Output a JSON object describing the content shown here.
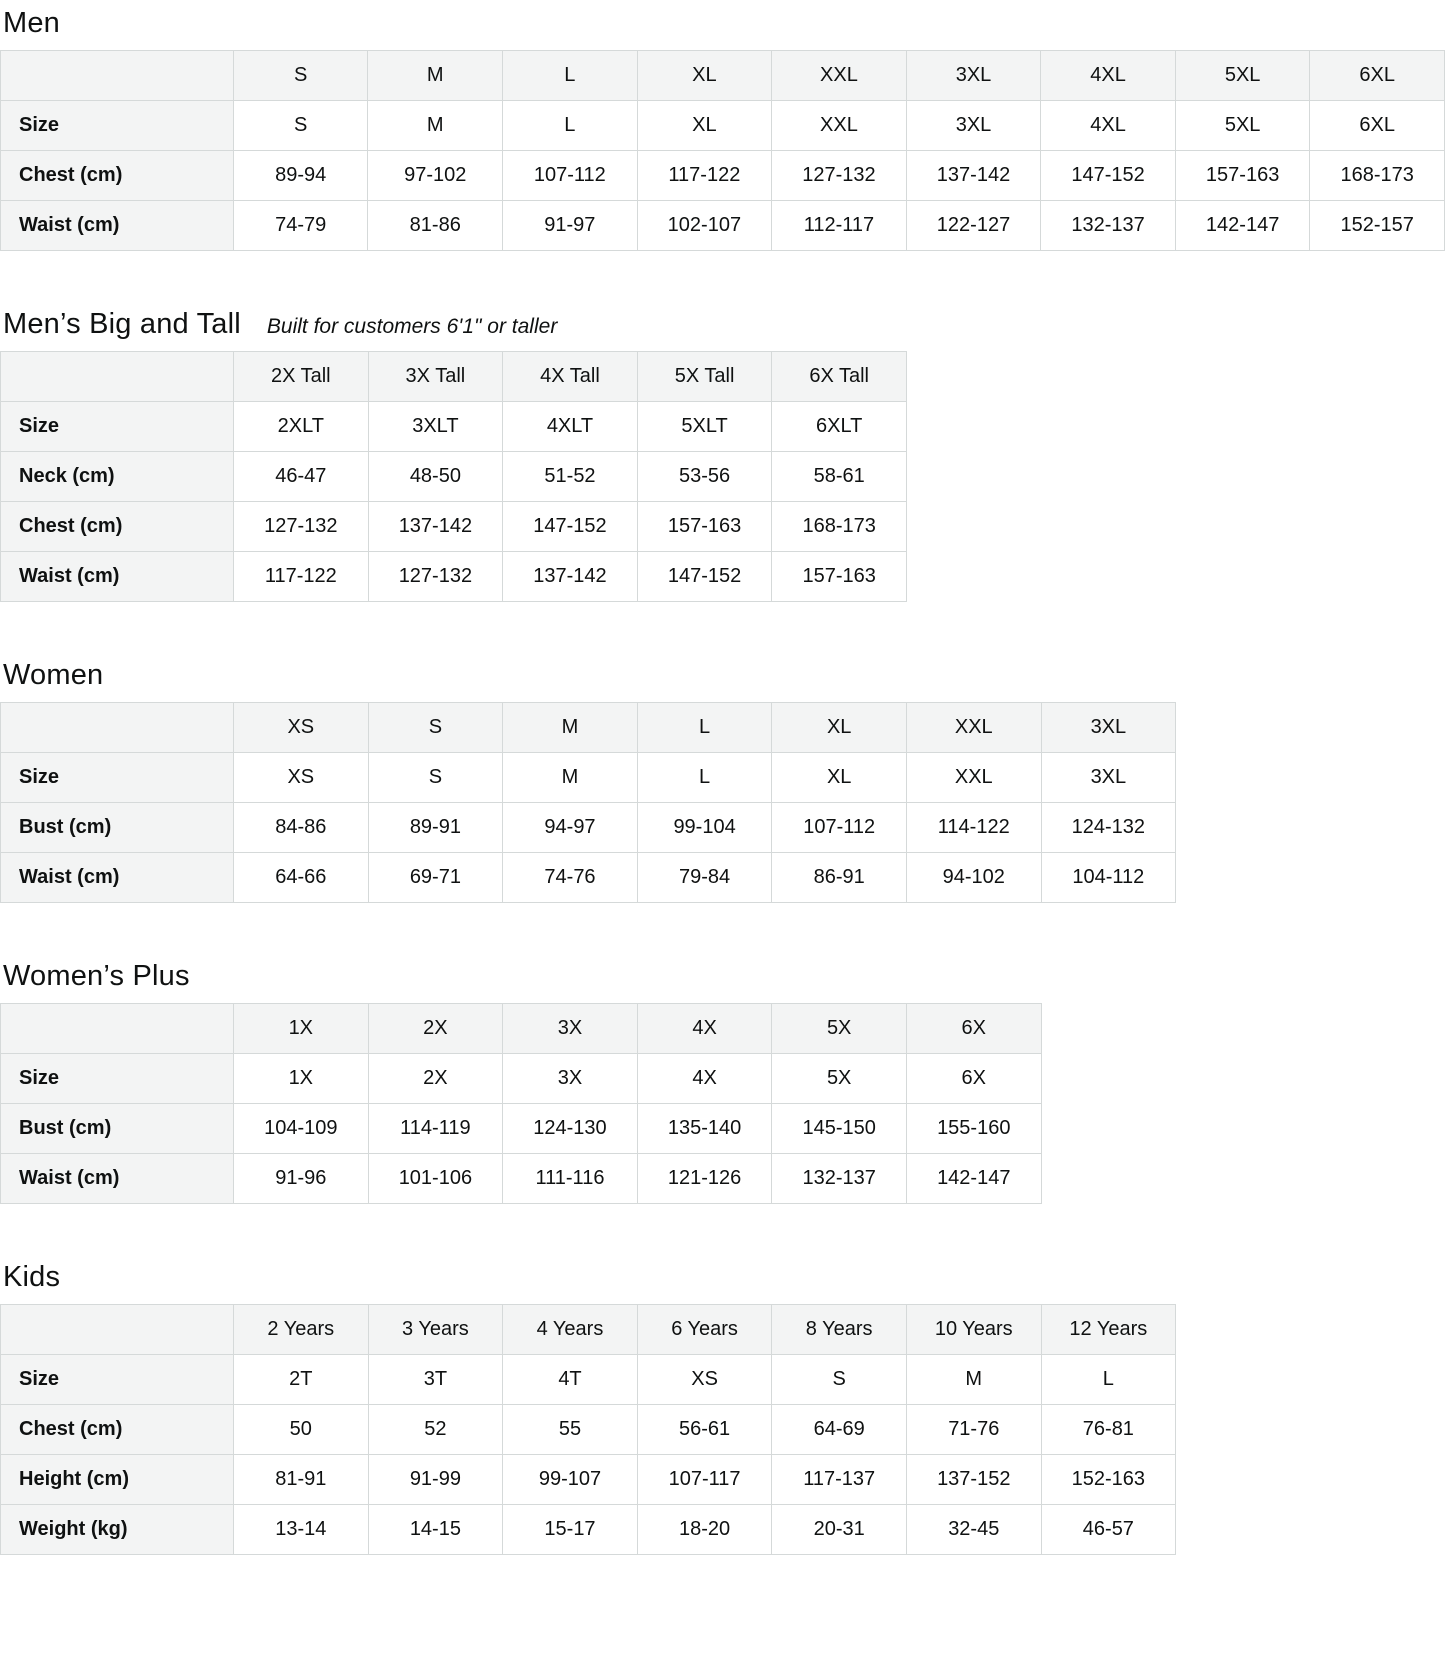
{
  "theme": {
    "header_bg": "#f3f4f4",
    "border_color": "#d5d9d9",
    "text_color": "#0f1111"
  },
  "sections": [
    {
      "id": "men",
      "title": "Men",
      "subtitle": "",
      "columns": [
        "S",
        "M",
        "L",
        "XL",
        "XXL",
        "3XL",
        "4XL",
        "5XL",
        "6XL"
      ],
      "rows": [
        {
          "label": "Size",
          "values": [
            "S",
            "M",
            "L",
            "XL",
            "XXL",
            "3XL",
            "4XL",
            "5XL",
            "6XL"
          ]
        },
        {
          "label": "Chest (cm)",
          "values": [
            "89-94",
            "97-102",
            "107-112",
            "117-122",
            "127-132",
            "137-142",
            "147-152",
            "157-163",
            "168-173"
          ]
        },
        {
          "label": "Waist (cm)",
          "values": [
            "74-79",
            "81-86",
            "91-97",
            "102-107",
            "112-117",
            "122-127",
            "132-137",
            "142-147",
            "152-157"
          ]
        }
      ]
    },
    {
      "id": "mens-big-and-tall",
      "title": "Men’s Big and Tall",
      "subtitle": "Built for customers 6'1\" or taller",
      "columns": [
        "2X Tall",
        "3X Tall",
        "4X Tall",
        "5X Tall",
        "6X Tall"
      ],
      "rows": [
        {
          "label": "Size",
          "values": [
            "2XLT",
            "3XLT",
            "4XLT",
            "5XLT",
            "6XLT"
          ]
        },
        {
          "label": "Neck (cm)",
          "values": [
            "46-47",
            "48-50",
            "51-52",
            "53-56",
            "58-61"
          ]
        },
        {
          "label": "Chest (cm)",
          "values": [
            "127-132",
            "137-142",
            "147-152",
            "157-163",
            "168-173"
          ]
        },
        {
          "label": "Waist (cm)",
          "values": [
            "117-122",
            "127-132",
            "137-142",
            "147-152",
            "157-163"
          ]
        }
      ]
    },
    {
      "id": "women",
      "title": "Women",
      "subtitle": "",
      "columns": [
        "XS",
        "S",
        "M",
        "L",
        "XL",
        "XXL",
        "3XL"
      ],
      "rows": [
        {
          "label": "Size",
          "values": [
            "XS",
            "S",
            "M",
            "L",
            "XL",
            "XXL",
            "3XL"
          ]
        },
        {
          "label": "Bust (cm)",
          "values": [
            "84-86",
            "89-91",
            "94-97",
            "99-104",
            "107-112",
            "114-122",
            "124-132"
          ]
        },
        {
          "label": "Waist (cm)",
          "values": [
            "64-66",
            "69-71",
            "74-76",
            "79-84",
            "86-91",
            "94-102",
            "104-112"
          ]
        }
      ]
    },
    {
      "id": "womens-plus",
      "title": "Women’s Plus",
      "subtitle": "",
      "columns": [
        "1X",
        "2X",
        "3X",
        "4X",
        "5X",
        "6X"
      ],
      "rows": [
        {
          "label": "Size",
          "values": [
            "1X",
            "2X",
            "3X",
            "4X",
            "5X",
            "6X"
          ]
        },
        {
          "label": "Bust (cm)",
          "values": [
            "104-109",
            "114-119",
            "124-130",
            "135-140",
            "145-150",
            "155-160"
          ]
        },
        {
          "label": "Waist (cm)",
          "values": [
            "91-96",
            "101-106",
            "111-116",
            "121-126",
            "132-137",
            "142-147"
          ]
        }
      ]
    },
    {
      "id": "kids",
      "title": "Kids",
      "subtitle": "",
      "columns": [
        "2 Years",
        "3 Years",
        "4 Years",
        "6 Years",
        "8 Years",
        "10 Years",
        "12 Years"
      ],
      "rows": [
        {
          "label": "Size",
          "values": [
            "2T",
            "3T",
            "4T",
            "XS",
            "S",
            "M",
            "L"
          ]
        },
        {
          "label": "Chest (cm)",
          "values": [
            "50",
            "52",
            "55",
            "56-61",
            "64-69",
            "71-76",
            "76-81"
          ]
        },
        {
          "label": "Height (cm)",
          "values": [
            "81-91",
            "91-99",
            "99-107",
            "107-117",
            "117-137",
            "137-152",
            "152-163"
          ]
        },
        {
          "label": "Weight (kg)",
          "values": [
            "13-14",
            "14-15",
            "15-17",
            "18-20",
            "20-31",
            "32-45",
            "46-57"
          ]
        }
      ]
    }
  ]
}
